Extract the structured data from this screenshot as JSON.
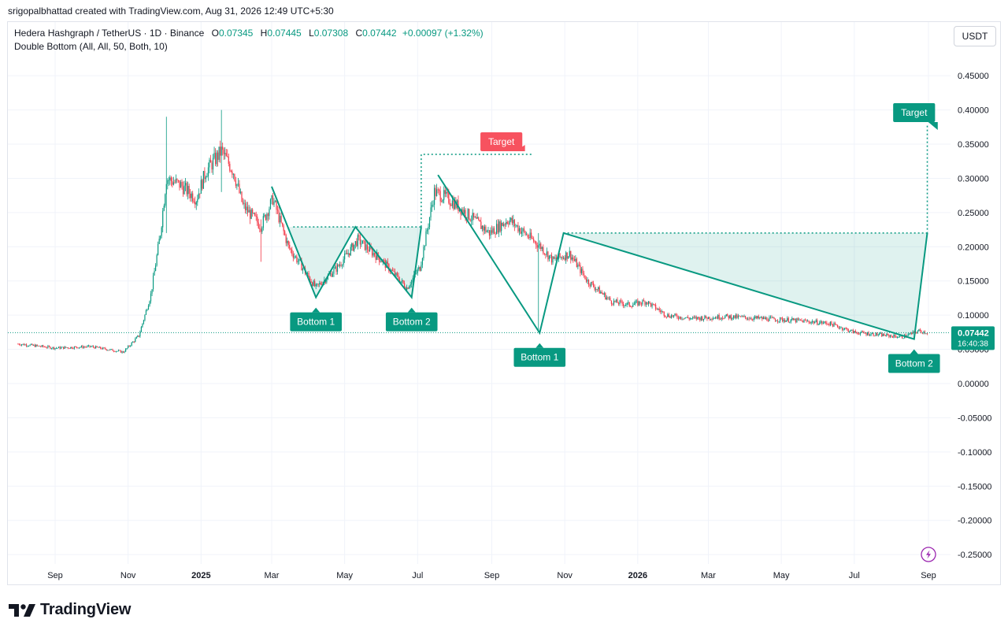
{
  "attribution": "srigopalbhattad created with TradingView.com, Aug 31, 2026 12:49 UTC+5:30",
  "legend": {
    "symbol": "Hedera Hashgraph / TetherUS · 1D · Binance",
    "o_label": "O",
    "o": "0.07345",
    "h_label": "H",
    "h": "0.07445",
    "l_label": "L",
    "l": "0.07308",
    "c_label": "C",
    "c": "0.07442",
    "change": "+0.00097 (+1.32%)",
    "indicator": "Double Bottom (All, All, 50, Both, 10)"
  },
  "currency_button": "USDT",
  "footer_logo": "TradingView",
  "colors": {
    "up": "#089981",
    "down": "#f23645",
    "pattern": "#089981",
    "fill": "#089981",
    "target_red": "#f7525f",
    "grid": "#f0f3fa"
  },
  "chart_data": {
    "type": "candlestick",
    "symbol": "HBARUSDT",
    "interval": "1D",
    "last_price": "0.07442",
    "countdown": "16:40:38",
    "ylim": [
      -0.26,
      0.5
    ],
    "y_ticks": [
      "0.45000",
      "0.40000",
      "0.35000",
      "0.30000",
      "0.25000",
      "0.20000",
      "0.15000",
      "0.10000",
      "0.05000",
      "0.00000",
      "-0.05000",
      "-0.10000",
      "-0.15000",
      "-0.20000",
      "-0.25000"
    ],
    "x_ticks": [
      {
        "label": "Sep",
        "date": "2024-09-01",
        "bold": false
      },
      {
        "label": "Nov",
        "date": "2024-11-01",
        "bold": false
      },
      {
        "label": "2025",
        "date": "2025-01-01",
        "bold": true
      },
      {
        "label": "Mar",
        "date": "2025-03-01",
        "bold": false
      },
      {
        "label": "May",
        "date": "2025-05-01",
        "bold": false
      },
      {
        "label": "Jul",
        "date": "2025-07-01",
        "bold": false
      },
      {
        "label": "Sep",
        "date": "2025-09-01",
        "bold": false
      },
      {
        "label": "Nov",
        "date": "2025-11-01",
        "bold": false
      },
      {
        "label": "2026",
        "date": "2026-01-01",
        "bold": true
      },
      {
        "label": "Mar",
        "date": "2026-03-01",
        "bold": false
      },
      {
        "label": "May",
        "date": "2026-05-01",
        "bold": false
      },
      {
        "label": "Jul",
        "date": "2026-07-01",
        "bold": false
      },
      {
        "label": "Sep",
        "date": "2026-09-01",
        "bold": false
      }
    ],
    "price_path": [
      [
        "2024-08-01",
        0.058
      ],
      [
        "2024-09-01",
        0.052
      ],
      [
        "2024-10-01",
        0.054
      ],
      [
        "2024-10-28",
        0.046
      ],
      [
        "2024-11-10",
        0.07
      ],
      [
        "2024-11-20",
        0.13
      ],
      [
        "2024-11-28",
        0.22
      ],
      [
        "2024-12-03",
        0.3
      ],
      [
        "2024-12-15",
        0.29
      ],
      [
        "2024-12-28",
        0.27
      ],
      [
        "2025-01-05",
        0.31
      ],
      [
        "2025-01-18",
        0.34
      ],
      [
        "2025-01-28",
        0.31
      ],
      [
        "2025-02-05",
        0.26
      ],
      [
        "2025-02-20",
        0.23
      ],
      [
        "2025-03-02",
        0.27
      ],
      [
        "2025-03-15",
        0.2
      ],
      [
        "2025-04-07",
        0.14
      ],
      [
        "2025-04-25",
        0.17
      ],
      [
        "2025-05-12",
        0.21
      ],
      [
        "2025-06-01",
        0.18
      ],
      [
        "2025-06-22",
        0.14
      ],
      [
        "2025-07-03",
        0.17
      ],
      [
        "2025-07-15",
        0.28
      ],
      [
        "2025-07-27",
        0.27
      ],
      [
        "2025-08-10",
        0.25
      ],
      [
        "2025-08-30",
        0.22
      ],
      [
        "2025-09-15",
        0.24
      ],
      [
        "2025-10-05",
        0.21
      ],
      [
        "2025-10-12",
        0.2
      ],
      [
        "2025-10-22",
        0.18
      ],
      [
        "2025-11-05",
        0.19
      ],
      [
        "2025-11-20",
        0.15
      ],
      [
        "2025-12-10",
        0.12
      ],
      [
        "2025-12-25",
        0.115
      ],
      [
        "2026-01-08",
        0.12
      ],
      [
        "2026-01-25",
        0.1
      ],
      [
        "2026-02-15",
        0.095
      ],
      [
        "2026-03-15",
        0.098
      ],
      [
        "2026-04-15",
        0.095
      ],
      [
        "2026-05-15",
        0.092
      ],
      [
        "2026-06-10",
        0.088
      ],
      [
        "2026-07-01",
        0.075
      ],
      [
        "2026-08-10",
        0.068
      ],
      [
        "2026-08-24",
        0.077
      ],
      [
        "2026-08-31",
        0.0744
      ]
    ],
    "spikes": [
      {
        "date": "2024-12-03",
        "high": 0.39,
        "low": 0.22
      },
      {
        "date": "2025-01-18",
        "high": 0.4,
        "low": 0.28
      },
      {
        "date": "2025-02-20",
        "high": 0.24,
        "low": 0.178
      },
      {
        "date": "2025-10-10",
        "high": 0.22,
        "low": 0.075
      }
    ],
    "patterns": [
      {
        "points": [
          [
            "2025-03-01",
            0.288
          ],
          [
            "2025-04-07",
            0.126
          ],
          [
            "2025-05-10",
            0.229
          ],
          [
            "2025-06-26",
            0.126
          ],
          [
            "2025-07-04",
            0.229
          ]
        ],
        "neckline": {
          "from": "2025-03-19",
          "to": "2025-07-04",
          "price": 0.229
        },
        "target": {
          "from": "2025-07-04",
          "to": "2025-10-05",
          "price": 0.335,
          "label": "Target",
          "label_date": "2025-09-09",
          "style": "red"
        },
        "bottom1": {
          "label": "Bottom 1",
          "date": "2025-04-07"
        },
        "bottom2": {
          "label": "Bottom 2",
          "date": "2025-06-26"
        }
      },
      {
        "points": [
          [
            "2025-07-18",
            0.305
          ],
          [
            "2025-10-11",
            0.074
          ],
          [
            "2025-10-31",
            0.22
          ],
          [
            "2026-08-20",
            0.065
          ],
          [
            "2026-08-31",
            0.22
          ]
        ],
        "neckline": {
          "from": "2025-10-31",
          "to": "2026-08-31",
          "price": 0.22
        },
        "target": {
          "from": "2026-08-31",
          "to": "2026-08-31",
          "price": 0.38,
          "label": "Target",
          "label_date": "2026-08-20",
          "style": "green"
        },
        "bottom1": {
          "label": "Bottom 1",
          "date": "2025-10-11"
        },
        "bottom2": {
          "label": "Bottom 2",
          "date": "2026-08-20"
        }
      }
    ]
  }
}
